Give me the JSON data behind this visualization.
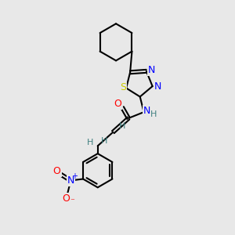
{
  "background_color": "#e8e8e8",
  "bond_color": "#000000",
  "atom_colors": {
    "N": "#0000ff",
    "O": "#ff0000",
    "S": "#cccc00",
    "H": "#408080",
    "C": "#000000"
  },
  "title": "",
  "lw": 1.5,
  "fs": 9,
  "fs_small": 8
}
